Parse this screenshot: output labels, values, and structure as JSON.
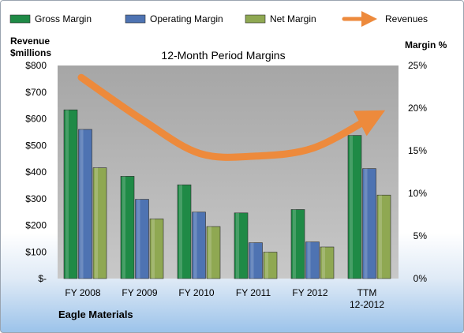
{
  "chart_data": {
    "type": "bar",
    "title": "12-Month Period Margins",
    "categories": [
      "FY 2008",
      "FY 2009",
      "FY 2010",
      "FY 2011",
      "FY 2012",
      "TTM 12-2012"
    ],
    "series": [
      {
        "name": "Gross Margin",
        "axis": "right",
        "values": [
          19.8,
          12.0,
          11.0,
          7.7,
          8.1,
          16.8
        ],
        "color": "#1f8a46"
      },
      {
        "name": "Operating Margin",
        "axis": "right",
        "values": [
          17.5,
          9.3,
          7.8,
          4.2,
          4.3,
          12.9
        ],
        "color": "#4e73b2"
      },
      {
        "name": "Net Margin",
        "axis": "right",
        "values": [
          13.0,
          7.0,
          6.1,
          3.1,
          3.7,
          9.8
        ],
        "color": "#8fa852"
      }
    ],
    "line_series": {
      "name": "Revenues",
      "axis": "left",
      "values": [
        755,
        595,
        470,
        460,
        490,
        602
      ],
      "color": "#ed8a3c"
    },
    "left_axis": {
      "label_line1": "Revenue",
      "label_line2": "$millions",
      "ylim": [
        0,
        800
      ],
      "ticks": [
        "$-",
        "$100",
        "$200",
        "$300",
        "$400",
        "$500",
        "$600",
        "$700",
        "$800"
      ]
    },
    "right_axis": {
      "label": "Margin %",
      "ylim": [
        0,
        25
      ],
      "ticks": [
        "0%",
        "5%",
        "10%",
        "15%",
        "20%",
        "25%"
      ]
    },
    "legend_position": "top",
    "grid": false,
    "company": "Eagle Materials",
    "plot_background": "#b3b3b3"
  }
}
